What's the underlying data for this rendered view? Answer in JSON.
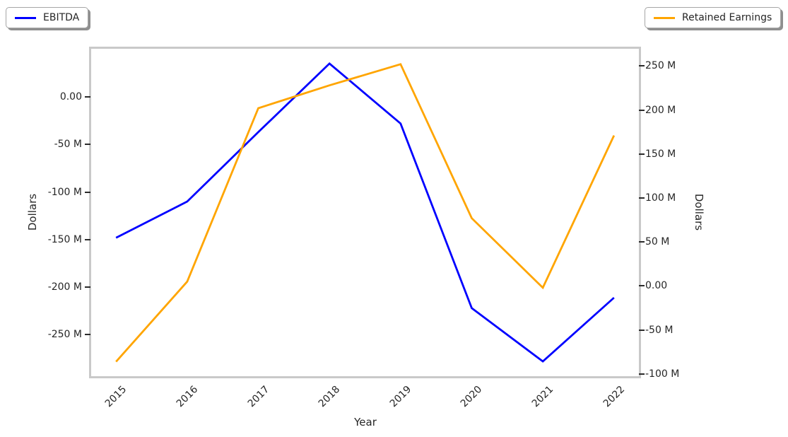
{
  "legend_left": {
    "label": "EBITDA",
    "color": "#0000ff"
  },
  "legend_right": {
    "label": "Retained Earnings",
    "color": "#ffa500"
  },
  "axes": {
    "x": {
      "label": "Year",
      "ticks": [
        "2015",
        "2016",
        "2017",
        "2018",
        "2019",
        "2020",
        "2021",
        "2022"
      ]
    },
    "left": {
      "label": "Dollars",
      "ticks": [
        {
          "v": 0,
          "t": "0.00"
        },
        {
          "v": -50,
          "t": "-50 M"
        },
        {
          "v": -100,
          "t": "-100 M"
        },
        {
          "v": -150,
          "t": "-150 M"
        },
        {
          "v": -200,
          "t": "-200 M"
        },
        {
          "v": -250,
          "t": "-250 M"
        }
      ]
    },
    "right": {
      "label": "Dollars",
      "ticks": [
        {
          "v": 250,
          "t": "250 M"
        },
        {
          "v": 200,
          "t": "200 M"
        },
        {
          "v": 150,
          "t": "150 M"
        },
        {
          "v": 100,
          "t": "100 M"
        },
        {
          "v": 50,
          "t": "50 M"
        },
        {
          "v": 0,
          "t": "0.00"
        },
        {
          "v": -50,
          "t": "-50 M"
        },
        {
          "v": -100,
          "t": "-100 M"
        }
      ]
    }
  },
  "chart_data": {
    "type": "line",
    "title": "",
    "xlabel": "Year",
    "ylabel_left": "Dollars",
    "ylabel_right": "Dollars",
    "x": [
      2015,
      2016,
      2017,
      2018,
      2019,
      2020,
      2021,
      2022
    ],
    "series": [
      {
        "name": "EBITDA",
        "axis": "left",
        "color": "#0000ff",
        "unit": "millions of dollars",
        "values": [
          -148,
          -110,
          -37,
          35,
          -28,
          -222,
          -278,
          -211
        ]
      },
      {
        "name": "Retained Earnings",
        "axis": "right",
        "color": "#ffa500",
        "unit": "millions of dollars",
        "values": [
          -86,
          5,
          202,
          228,
          252,
          77,
          -2,
          171
        ]
      }
    ],
    "xlim": [
      2014.65,
      2022.35
    ],
    "ylim_left_millions": [
      -293.5,
      50.5
    ],
    "ylim_right_millions": [
      -102.5,
      269.5
    ],
    "grid": false,
    "legend_position": "EBITDA top-left outside, Retained Earnings top-right outside"
  }
}
